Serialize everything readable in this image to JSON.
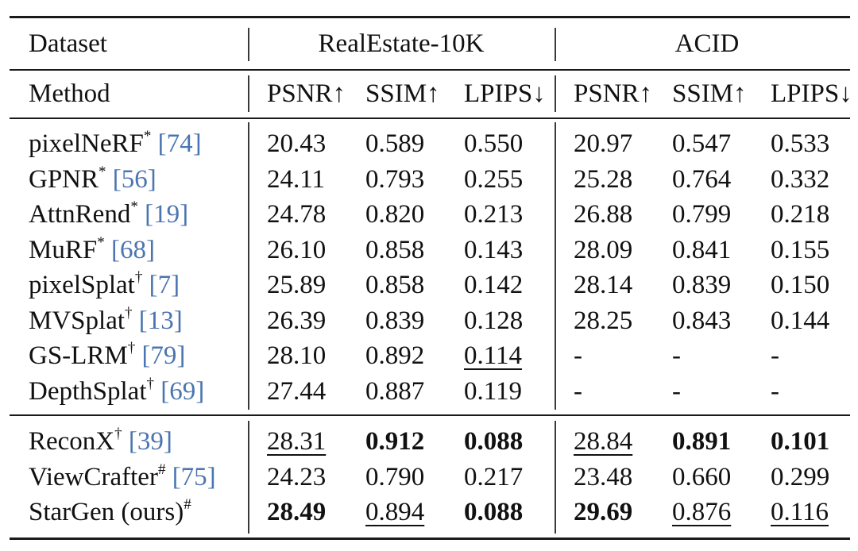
{
  "header": {
    "dataset_label": "Dataset",
    "method_label": "Method",
    "groups": [
      "RealEstate-10K",
      "ACID"
    ],
    "metrics": [
      "PSNR↑",
      "SSIM↑",
      "LPIPS↓",
      "PSNR↑",
      "SSIM↑",
      "LPIPS↓"
    ]
  },
  "groups": [
    [
      {
        "name": "pixelNeRF",
        "mark": "*",
        "ref": "[74]",
        "values": [
          "20.43",
          "0.589",
          "0.550",
          "20.97",
          "0.547",
          "0.533"
        ]
      },
      {
        "name": "GPNR",
        "mark": "*",
        "ref": "[56]",
        "values": [
          "24.11",
          "0.793",
          "0.255",
          "25.28",
          "0.764",
          "0.332"
        ]
      },
      {
        "name": "AttnRend",
        "mark": "*",
        "ref": "[19]",
        "values": [
          "24.78",
          "0.820",
          "0.213",
          "26.88",
          "0.799",
          "0.218"
        ]
      },
      {
        "name": "MuRF",
        "mark": "*",
        "ref": "[68]",
        "values": [
          "26.10",
          "0.858",
          "0.143",
          "28.09",
          "0.841",
          "0.155"
        ]
      },
      {
        "name": "pixelSplat",
        "mark": "†",
        "ref": "[7]",
        "values": [
          "25.89",
          "0.858",
          "0.142",
          "28.14",
          "0.839",
          "0.150"
        ]
      },
      {
        "name": "MVSplat",
        "mark": "†",
        "ref": "[13]",
        "values": [
          "26.39",
          "0.839",
          "0.128",
          "28.25",
          "0.843",
          "0.144"
        ]
      },
      {
        "name": "GS-LRM",
        "mark": "†",
        "ref": "[79]",
        "values": [
          "28.10",
          "0.892",
          "0.114",
          "-",
          "-",
          "-"
        ],
        "underline": [
          2
        ]
      },
      {
        "name": "DepthSplat",
        "mark": "†",
        "ref": "[69]",
        "values": [
          "27.44",
          "0.887",
          "0.119",
          "-",
          "-",
          "-"
        ]
      }
    ],
    [
      {
        "name": "ReconX",
        "mark": "†",
        "ref": "[39]",
        "values": [
          "28.31",
          "0.912",
          "0.088",
          "28.84",
          "0.891",
          "0.101"
        ],
        "bold": [
          1,
          2,
          4,
          5
        ],
        "underline": [
          0,
          3
        ]
      },
      {
        "name": "ViewCrafter",
        "mark": "#",
        "ref": "[75]",
        "values": [
          "24.23",
          "0.790",
          "0.217",
          "23.48",
          "0.660",
          "0.299"
        ]
      },
      {
        "name": "StarGen (ours)",
        "mark": "#",
        "ref": "",
        "values": [
          "28.49",
          "0.894",
          "0.088",
          "29.69",
          "0.876",
          "0.116"
        ],
        "bold": [
          0,
          2,
          3
        ],
        "underline": [
          1,
          4,
          5
        ]
      }
    ]
  ]
}
